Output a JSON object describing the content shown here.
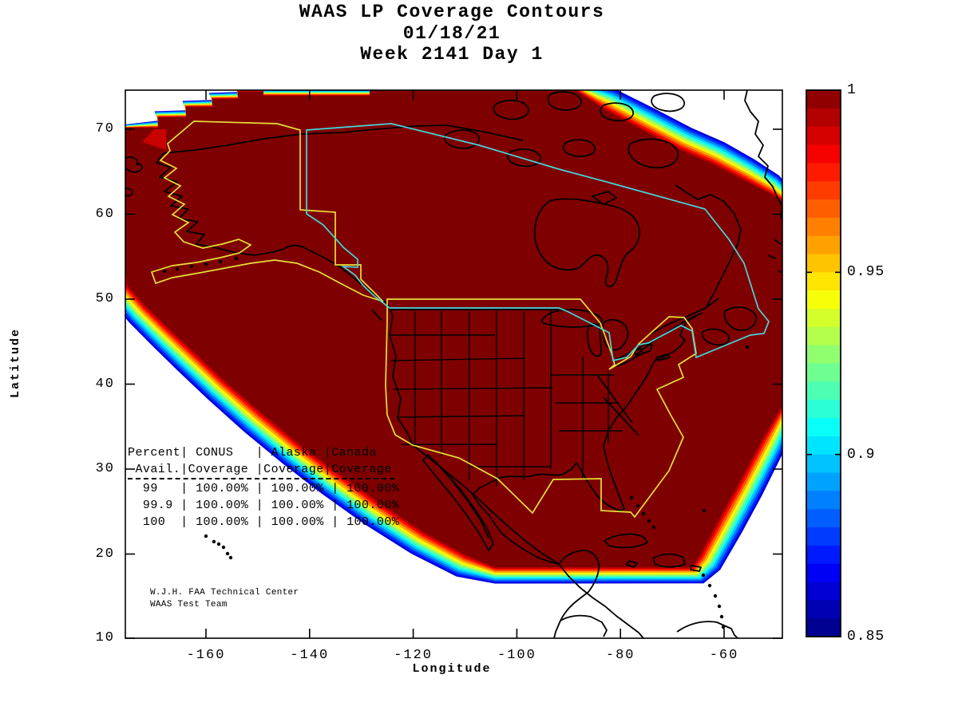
{
  "title": {
    "line1": "WAAS LP Coverage Contours",
    "line2": "01/18/21",
    "line3": "Week 2141 Day 1"
  },
  "axes": {
    "xlabel": "Longitude",
    "ylabel": "Latitude",
    "x_tick_labels": [
      "-160",
      "-140",
      "-120",
      "-100",
      "-80",
      "-60"
    ],
    "x_tick_values": [
      -160,
      -140,
      -120,
      -100,
      -80,
      -60
    ],
    "y_tick_labels": [
      "70",
      "60",
      "50",
      "40",
      "30",
      "20",
      "10"
    ],
    "y_tick_values": [
      70,
      60,
      50,
      40,
      30,
      20,
      10
    ]
  },
  "colorbar": {
    "tick_labels": [
      "1",
      "0.95",
      "0.9",
      "0.85"
    ],
    "tick_values": [
      1,
      0.95,
      0.9,
      0.85
    ],
    "max": "1",
    "min": "0.85"
  },
  "overlay_table": {
    "header_lines": [
      "Percent| CONUS   | Alaska |Canada",
      " Avail.|Coverage |Coverage|Coverage"
    ],
    "row_lines": [
      "  99   | 100.00% | 100.00% | 100.00%",
      "  99.9 | 100.00% | 100.00% | 100.00%",
      "  100  | 100.00% | 100.00% | 100.00%"
    ]
  },
  "credit": {
    "line1": "W.J.H. FAA Technical Center",
    "line2": "WAAS Test Team"
  },
  "colors": {
    "coverage_max_red": "#7f0000",
    "conus_alaska_boundary_yellow": "#e8df3a",
    "canada_boundary_cyan": "#45d8dc",
    "coastline_black": "#000000"
  },
  "chart_data": {
    "type": "heatmap",
    "title": "WAAS LP Coverage Contours",
    "subtitle": [
      "01/18/21",
      "Week 2141 Day 1"
    ],
    "xlabel": "Longitude",
    "ylabel": "Latitude",
    "xlim": [
      -175.6,
      -49
    ],
    "ylim": [
      10,
      74.5
    ],
    "x_ticks": [
      -160,
      -140,
      -120,
      -100,
      -80,
      -60
    ],
    "y_ticks": [
      70,
      60,
      50,
      40,
      30,
      20,
      10
    ],
    "grid": false,
    "colorbar": {
      "range": [
        0.85,
        1
      ],
      "ticks": [
        1,
        0.95,
        0.9,
        0.85
      ],
      "colormap": "jet",
      "position": "right"
    },
    "description": "LP availability contour map over North America. Availability equals 1.0 (dark red) across essentially the entire plotted footprint including CONUS, Alaska and Canada; rainbow contour bands from 1.0 down to 0.85 appear only in narrow strips along the outer edges of the WAAS coverage footprint (Pacific southwest edge, southeast/Caribbean edge, and northeast/Greenland edge). Yellow outlines mark the CONUS and Alaska service volumes, cyan outline marks the Canada service volume, black lines are coastlines and state borders.",
    "availability_table": {
      "columns": [
        "Percent Avail.",
        "CONUS Coverage",
        "Alaska Coverage",
        "Canada Coverage"
      ],
      "rows": [
        [
          "99",
          "100.00%",
          "100.00%",
          "100.00%"
        ],
        [
          "99.9",
          "100.00%",
          "100.00%",
          "100.00%"
        ],
        [
          "100",
          "100.00%",
          "100.00%",
          "100.00%"
        ]
      ]
    }
  }
}
